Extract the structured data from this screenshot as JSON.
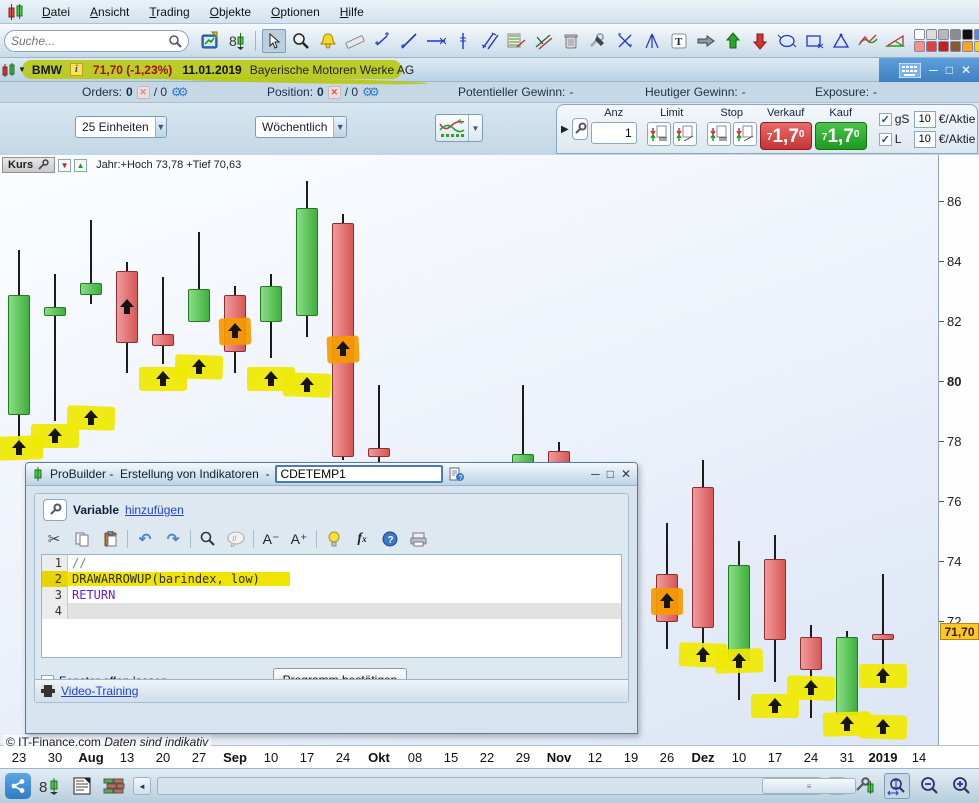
{
  "app": {
    "menu": [
      "Datei",
      "Ansicht",
      "Trading",
      "Objekte",
      "Optionen",
      "Hilfe"
    ],
    "search_placeholder": "Suche...",
    "toolbar_icons": [
      "new-chart",
      "link-instrument",
      "cursor",
      "zoom",
      "alerts",
      "ruler",
      "segment",
      "trend-line",
      "horizontal-line",
      "vertical-line",
      "parallel-lines",
      "fan-lines",
      "channel",
      "delete",
      "tools",
      "cross-lines",
      "angle-lines",
      "text",
      "arrow",
      "arrow-up",
      "arrow-down",
      "ellipse",
      "rectangle",
      "triangle",
      "zigzag",
      "wedge",
      "color-palette"
    ],
    "palette": [
      "#ffffff",
      "#dcdcdc",
      "#b8b8b8",
      "#8c8c8c",
      "#111111",
      "#4d8fe0",
      "#f49090",
      "#e04040",
      "#c82020",
      "#8b5a2b",
      "#f5a623",
      "#f0dc14"
    ]
  },
  "instrument": {
    "symbol": "BMW",
    "info_badge": "i",
    "price_change": "71,70 (-1,23%)",
    "date": "11.01.2019",
    "name": "Bayerische Motoren Werke AG"
  },
  "account": {
    "orders_label": "Orders:",
    "orders_open": "0",
    "orders_total": "/ 0",
    "position_label": "Position:",
    "position_open": "0",
    "position_total": "/ 0",
    "pot_gewinn_label": "Potentieller Gewinn:",
    "pot_gewinn_value": "-",
    "heut_gewinn_label": "Heutiger Gewinn:",
    "heut_gewinn_value": "-",
    "exposure_label": "Exposure:",
    "exposure_value": "-"
  },
  "controls": {
    "units": "25 Einheiten",
    "timeframe": "Wöchentlich"
  },
  "trade": {
    "anz_label": "Anz",
    "anz_value": "1",
    "limit_label": "Limit",
    "stop_label": "Stop",
    "verkauf_label": "Verkauf",
    "kauf_label": "Kauf",
    "sell_price": "71,70",
    "buy_price": "71,70",
    "sell_parts": [
      "7",
      "1,7",
      "0"
    ],
    "buy_parts": [
      "7",
      "1,7",
      "0"
    ],
    "gs_label": "gS",
    "l_label": "L",
    "gs_value": "10",
    "l_value": "10",
    "per_share": "€/Aktie",
    "per_share2": "€/Aktie"
  },
  "chart": {
    "series_label": "Kurs",
    "stats": "Jahr:+Hoch 73,78 +Tief 70,63",
    "last_price_label": "71,70"
  },
  "chart_data": {
    "type": "candlestick",
    "title": "BMW Wöchentlich (Kurs), €/Aktie",
    "ylim": [
      68,
      87
    ],
    "y_ticks": [
      86,
      84,
      82,
      80,
      78,
      76,
      74,
      72
    ],
    "y_bold": 80,
    "x_labels": [
      "23",
      "30",
      "Aug",
      "13",
      "20",
      "27",
      "Sep",
      "10",
      "17",
      "24",
      "Okt",
      "08",
      "15",
      "22",
      "29",
      "Nov",
      "12",
      "19",
      "26",
      "Dez",
      "10",
      "17",
      "24",
      "31",
      "2019",
      "14"
    ],
    "x_bold_indices": [
      2,
      6,
      10,
      15,
      19,
      24
    ],
    "last_price": 71.7,
    "candles": [
      {
        "i": 0,
        "o": 78.9,
        "h": 84.4,
        "l": 78.0,
        "c": 82.9
      },
      {
        "i": 1,
        "o": 82.2,
        "h": 83.6,
        "l": 78.7,
        "c": 82.5
      },
      {
        "i": 2,
        "o": 82.9,
        "h": 85.4,
        "l": 82.6,
        "c": 83.3
      },
      {
        "i": 3,
        "o": 83.7,
        "h": 84.0,
        "l": 80.3,
        "c": 81.3
      },
      {
        "i": 4,
        "o": 81.6,
        "h": 83.5,
        "l": 80.6,
        "c": 81.2
      },
      {
        "i": 5,
        "o": 82.0,
        "h": 85.0,
        "l": 82.0,
        "c": 83.1
      },
      {
        "i": 6,
        "o": 82.9,
        "h": 83.2,
        "l": 80.3,
        "c": 81.0
      },
      {
        "i": 7,
        "o": 82.0,
        "h": 83.6,
        "l": 80.8,
        "c": 83.2
      },
      {
        "i": 8,
        "o": 82.2,
        "h": 86.7,
        "l": 81.5,
        "c": 85.8
      },
      {
        "i": 9,
        "o": 85.3,
        "h": 85.6,
        "l": 77.4,
        "c": 77.5
      },
      {
        "i": 10,
        "o": 77.8,
        "h": 79.9,
        "l": 77.2,
        "c": 77.5
      },
      {
        "i": 14,
        "o": 77.0,
        "h": 79.9,
        "l": 76.8,
        "c": 77.6
      },
      {
        "i": 15,
        "o": 77.7,
        "h": 78.0,
        "l": 76.9,
        "c": 77.2
      },
      {
        "i": 18,
        "o": 73.6,
        "h": 75.3,
        "l": 71.1,
        "c": 72.0
      },
      {
        "i": 19,
        "o": 76.5,
        "h": 77.4,
        "l": 71.1,
        "c": 71.8
      },
      {
        "i": 20,
        "o": 70.7,
        "h": 74.7,
        "l": 69.4,
        "c": 73.9
      },
      {
        "i": 21,
        "o": 74.1,
        "h": 74.9,
        "l": 70.0,
        "c": 71.4
      },
      {
        "i": 22,
        "o": 71.5,
        "h": 71.9,
        "l": 68.8,
        "c": 70.4
      },
      {
        "i": 23,
        "o": 68.9,
        "h": 71.7,
        "l": 68.9,
        "c": 71.5
      },
      {
        "i": 24,
        "o": 71.6,
        "h": 73.6,
        "l": 70.4,
        "c": 71.4
      }
    ],
    "arrows": [
      {
        "i": 0,
        "p": 77.8,
        "hl": "yellow"
      },
      {
        "i": 1,
        "p": 78.2,
        "hl": "yellow"
      },
      {
        "i": 2,
        "p": 78.8,
        "hl": "yellow"
      },
      {
        "i": 3,
        "p": 82.5,
        "hl": "none"
      },
      {
        "i": 4,
        "p": 80.1,
        "hl": "yellow"
      },
      {
        "i": 5,
        "p": 80.5,
        "hl": "yellow"
      },
      {
        "i": 6,
        "p": 81.7,
        "hl": "orange"
      },
      {
        "i": 7,
        "p": 80.1,
        "hl": "yellow"
      },
      {
        "i": 8,
        "p": 79.9,
        "hl": "yellow"
      },
      {
        "i": 9,
        "p": 81.1,
        "hl": "orange"
      },
      {
        "i": 18,
        "p": 72.7,
        "hl": "orange"
      },
      {
        "i": 19,
        "p": 70.9,
        "hl": "yellow"
      },
      {
        "i": 20,
        "p": 70.7,
        "hl": "yellow"
      },
      {
        "i": 21,
        "p": 69.2,
        "hl": "yellow"
      },
      {
        "i": 22,
        "p": 69.8,
        "hl": "yellow"
      },
      {
        "i": 23,
        "p": 68.6,
        "hl": "yellow"
      },
      {
        "i": 24,
        "p": 70.2,
        "hl": "yellow"
      },
      {
        "i": 24,
        "p": 68.5,
        "hl": "yellow"
      }
    ]
  },
  "dialog": {
    "title": "ProBuilder -  Erstellung von Indikatoren  -",
    "name_value": "CDETEMP1",
    "variable_label": "Variable",
    "add_link": "hinzufügen",
    "toolbar_icons": [
      "cut",
      "copy",
      "paste",
      "undo",
      "redo",
      "search",
      "comment",
      "font-smaller",
      "font-larger",
      "hint",
      "function",
      "help",
      "print"
    ],
    "code_lines": [
      {
        "num": "1",
        "segments": [
          {
            "text": "//",
            "color": "#6f8f6f"
          }
        ],
        "highlight": false,
        "current": false
      },
      {
        "num": "2",
        "segments": [
          {
            "text": "DRAWARROWUP",
            "color": "#2b2b2b"
          },
          {
            "text": "(barindex, low)",
            "color": "#2b2b2b"
          }
        ],
        "highlight": true,
        "current": false
      },
      {
        "num": "3",
        "segments": [
          {
            "text": "RETURN",
            "color": "#6a1fd0"
          }
        ],
        "highlight": false,
        "current": false
      },
      {
        "num": "4",
        "segments": [],
        "highlight": false,
        "current": true
      }
    ],
    "keep_open_label": "Fenster offen lassen",
    "confirm_button": "Programm bestätigen",
    "video_link": "Video-Training"
  },
  "footer": {
    "copyright": "© IT-Finance.com",
    "disclaimer": "Daten sind indikativ",
    "statusbar_icons": [
      "share",
      "link-instrument",
      "news",
      "market-depth",
      "scroll-left",
      "scroll-right",
      "chart-settings",
      "zoom-fit",
      "zoom-out",
      "zoom-in"
    ]
  }
}
